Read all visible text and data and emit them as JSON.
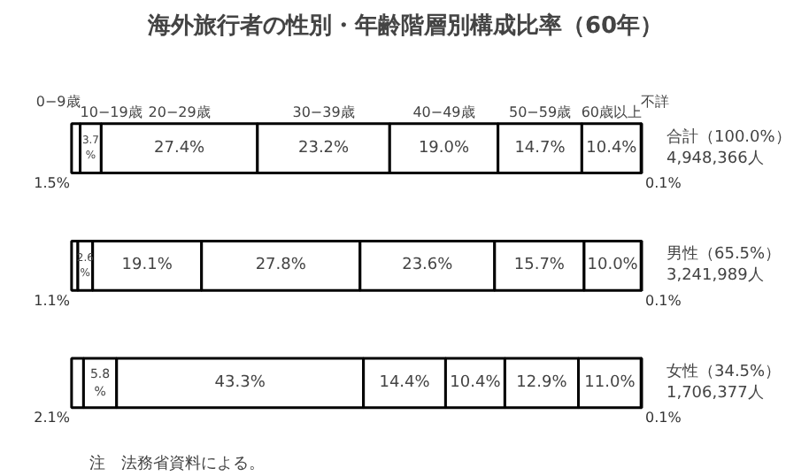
{
  "chart_data": {
    "type": "bar",
    "orientation": "horizontal",
    "stacked": true,
    "title": "海外旅行者の性別・年齢階層別構成比率（60年）",
    "categories": [
      "合計（100.0%）\n4,948,366人",
      "男性（65.5%）\n3,241,989人",
      "女性（34.5%）\n1,706,377人"
    ],
    "series": [
      {
        "name": "0−9歳",
        "color": "#ffffff",
        "values": [
          1.5,
          1.1,
          2.1
        ],
        "value_labels": [
          "1.5%",
          "1.1%",
          "2.1%"
        ]
      },
      {
        "name": "10−19歳",
        "color": "#ffffff",
        "values": [
          3.7,
          2.6,
          5.8
        ],
        "value_labels": [
          "3.7\n%",
          "2.6\n%",
          "5.8\n%"
        ]
      },
      {
        "name": "20−29歳",
        "color": "#ffffff",
        "values": [
          27.4,
          19.1,
          43.3
        ],
        "value_labels": [
          "27.4%",
          "19.1%",
          "43.3%"
        ]
      },
      {
        "name": "30−39歳",
        "color": "#ffffff",
        "values": [
          23.2,
          27.8,
          14.4
        ],
        "value_labels": [
          "23.2%",
          "27.8%",
          "14.4%"
        ]
      },
      {
        "name": "40−49歳",
        "color": "#ffffff",
        "values": [
          19.0,
          23.6,
          10.4
        ],
        "value_labels": [
          "19.0%",
          "23.6%",
          "10.4%"
        ]
      },
      {
        "name": "50−59歳",
        "color": "#ffffff",
        "values": [
          14.7,
          15.7,
          12.9
        ],
        "value_labels": [
          "14.7%",
          "15.7%",
          "12.9%"
        ]
      },
      {
        "name": "60歳以上",
        "color": "#ffffff",
        "values": [
          10.4,
          10.0,
          11.0
        ],
        "value_labels": [
          "10.4%",
          "10.0%",
          "11.0%"
        ]
      },
      {
        "name": "不詳",
        "color": "#ffffff",
        "values": [
          0.1,
          0.1,
          0.1
        ],
        "value_labels": [
          "0.1%",
          "0.1%",
          "0.1%"
        ]
      }
    ],
    "annotations": [
      "注　法務省資料による。"
    ],
    "legend": false,
    "grid": false
  }
}
